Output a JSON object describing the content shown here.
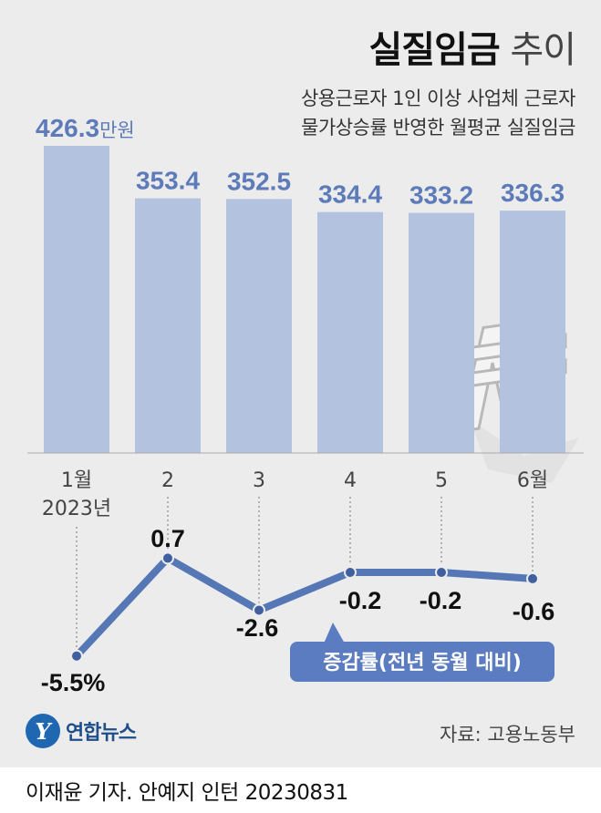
{
  "title": {
    "bold": "실질임금",
    "light": "추이"
  },
  "subtitle": [
    "상용근로자 1인 이상 사업체 근로자",
    "물가상승률 반영한 월평균 실질임금"
  ],
  "chart_data": [
    {
      "type": "bar",
      "categories": [
        "1월",
        "2",
        "3",
        "4",
        "5",
        "6월"
      ],
      "year_label": "2023년",
      "values": [
        426.3,
        353.4,
        352.5,
        334.4,
        333.2,
        336.3
      ],
      "value_labels": [
        "426.3",
        "353.4",
        "352.5",
        "334.4",
        "333.2",
        "336.3"
      ],
      "unit": "만원",
      "ylim": [
        0,
        450
      ],
      "color": "#b3c2de"
    },
    {
      "type": "line",
      "categories": [
        "1월",
        "2",
        "3",
        "4",
        "5",
        "6월"
      ],
      "values": [
        -5.5,
        0.7,
        -2.6,
        -0.2,
        -0.2,
        -0.6
      ],
      "value_labels": [
        "-5.5%",
        "0.7",
        "-2.6",
        "-0.2",
        "-0.2",
        "-0.6"
      ],
      "series_label": "증감률(전년 동월 대비)",
      "color": "#5677b5"
    }
  ],
  "colors": {
    "bar": "#b3c2de",
    "bar_label": "#5d7bb8",
    "line": "#5677b5",
    "badge": "#5b7cc0",
    "panel": "#ececec"
  },
  "logo": {
    "mark": "Y",
    "text": "연합뉴스"
  },
  "source": "자료: 고용노동부",
  "footer": "이재윤 기자. 안예지 인턴  20230831"
}
